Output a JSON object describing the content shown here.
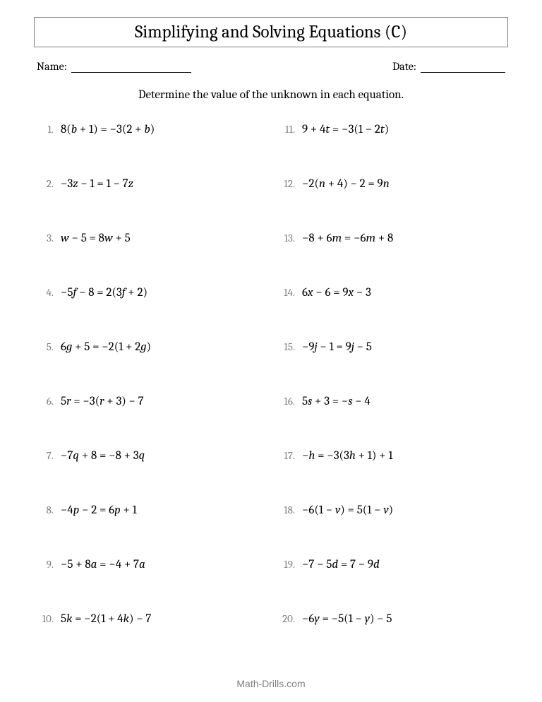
{
  "title": "Simplifying and Solving Equations (C)",
  "name_label": "Name:",
  "date_label": "Date:",
  "instructions": "Determine the value of the unknown in each equation.",
  "footer": "Math-Drills.com",
  "colors": {
    "text": "#000000",
    "muted": "#808080",
    "border": "#808080",
    "background": "#ffffff"
  },
  "typography": {
    "title_fontsize": 25,
    "body_fontsize": 17,
    "number_fontsize": 15,
    "footer_fontsize": 14,
    "font_family": "Cambria, Georgia, serif"
  },
  "layout": {
    "columns": 2,
    "rows": 10,
    "row_gap": 58,
    "col_gap": 28
  },
  "problems": [
    {
      "num": "1.",
      "equation": "8(b + 1) = −3(2 + b)"
    },
    {
      "num": "2.",
      "equation": "−3z − 1 = 1 − 7z"
    },
    {
      "num": "3.",
      "equation": "w − 5 = 8w + 5"
    },
    {
      "num": "4.",
      "equation": "−5f − 8 = 2(3f + 2)"
    },
    {
      "num": "5.",
      "equation": "6g + 5 = −2(1 + 2g)"
    },
    {
      "num": "6.",
      "equation": "5r = −3(r + 3) − 7"
    },
    {
      "num": "7.",
      "equation": "−7q + 8 = −8 + 3q"
    },
    {
      "num": "8.",
      "equation": "−4p − 2 = 6p + 1"
    },
    {
      "num": "9.",
      "equation": "−5 + 8a = −4 + 7a"
    },
    {
      "num": "10.",
      "equation": "5k = −2(1 + 4k) − 7"
    },
    {
      "num": "11.",
      "equation": "9 + 4t = −3(1 − 2t)"
    },
    {
      "num": "12.",
      "equation": "−2(n + 4) − 2 = 9n"
    },
    {
      "num": "13.",
      "equation": "−8 + 6m = −6m + 8"
    },
    {
      "num": "14.",
      "equation": "6x − 6 = 9x − 3"
    },
    {
      "num": "15.",
      "equation": "−9j − 1 = 9j − 5"
    },
    {
      "num": "16.",
      "equation": "5s + 3 = −s − 4"
    },
    {
      "num": "17.",
      "equation": "−h = −3(3h + 1) + 1"
    },
    {
      "num": "18.",
      "equation": "−6(1 − v) = 5(1 − v)"
    },
    {
      "num": "19.",
      "equation": "−7 − 5d = 7 − 9d"
    },
    {
      "num": "20.",
      "equation": "−6y = −5(1 − y) − 5"
    }
  ]
}
